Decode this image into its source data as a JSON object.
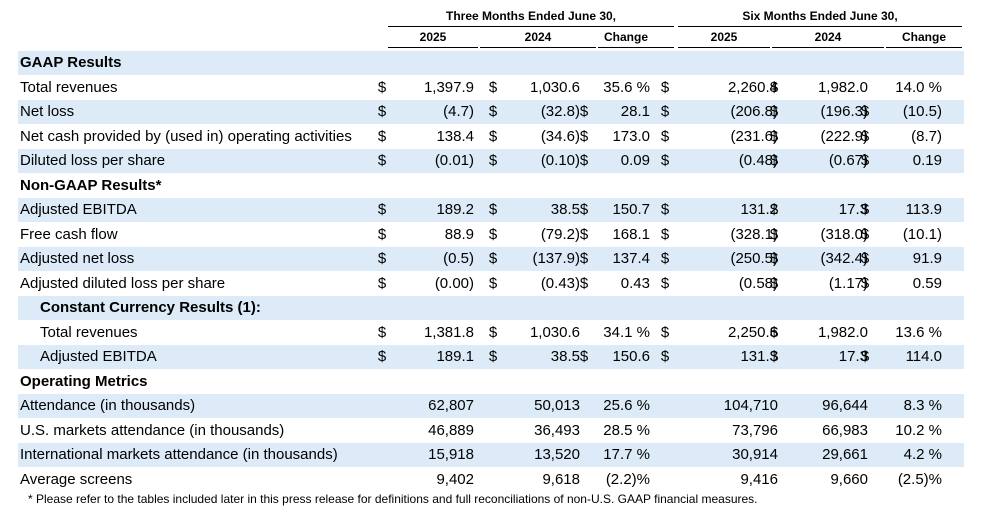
{
  "header": {
    "three_months": "Three Months Ended June 30,",
    "six_months": "Six Months Ended June 30,",
    "cols": [
      "2025",
      "2024",
      "Change",
      "2025",
      "2024",
      "Change"
    ]
  },
  "rows": [
    {
      "type": "section",
      "label": "GAAP Results"
    },
    {
      "type": "data",
      "label": "Total revenues",
      "c": [
        "$",
        "1,397.9",
        "$",
        "1,030.6",
        "",
        "35.6 %",
        "$",
        "2,260.4",
        "$",
        "1,982.0",
        "",
        "14.0 %"
      ]
    },
    {
      "type": "data",
      "label": "Net loss",
      "c": [
        "$",
        "(4.7)",
        "$",
        "(32.8)",
        "$",
        "28.1",
        "$",
        "(206.8)",
        "$",
        "(196.3)",
        "$",
        "(10.5)"
      ]
    },
    {
      "type": "data",
      "label": "Net cash provided by (used in) operating activities",
      "c": [
        "$",
        "138.4",
        "$",
        "(34.6)",
        "$",
        "173.0",
        "$",
        "(231.6)",
        "$",
        "(222.9)",
        "$",
        "(8.7)"
      ]
    },
    {
      "type": "data",
      "label": "Diluted loss per share",
      "c": [
        "$",
        "(0.01)",
        "$",
        "(0.10)",
        "$",
        "0.09",
        "$",
        "(0.48)",
        "$",
        "(0.67)",
        "$",
        "0.19"
      ]
    },
    {
      "type": "section",
      "label": "Non-GAAP Results*"
    },
    {
      "type": "data",
      "label": "Adjusted EBITDA",
      "c": [
        "$",
        "189.2",
        "$",
        "38.5",
        "$",
        "150.7",
        "$",
        "131.2",
        "$",
        "17.3",
        "$",
        "113.9"
      ]
    },
    {
      "type": "data",
      "label": "Free cash flow",
      "c": [
        "$",
        "88.9",
        "$",
        "(79.2)",
        "$",
        "168.1",
        "$",
        "(328.1)",
        "$",
        "(318.0)",
        "$",
        "(10.1)"
      ]
    },
    {
      "type": "data",
      "label": "Adjusted net loss",
      "c": [
        "$",
        "(0.5)",
        "$",
        "(137.9)",
        "$",
        "137.4",
        "$",
        "(250.5)",
        "$",
        "(342.4)",
        "$",
        "91.9"
      ]
    },
    {
      "type": "data",
      "label": "Adjusted diluted loss per share",
      "c": [
        "$",
        "(0.00)",
        "$",
        "(0.43)",
        "$",
        "0.43",
        "$",
        "(0.58)",
        "$",
        "(1.17)",
        "$",
        "0.59"
      ]
    },
    {
      "type": "section",
      "indent": true,
      "label": "Constant Currency Results (1):"
    },
    {
      "type": "data",
      "indent": true,
      "label": "Total revenues",
      "c": [
        "$",
        "1,381.8",
        "$",
        "1,030.6",
        "",
        "34.1 %",
        "$",
        "2,250.6",
        "$",
        "1,982.0",
        "",
        "13.6 %"
      ]
    },
    {
      "type": "data",
      "indent": true,
      "label": "Adjusted EBITDA",
      "c": [
        "$",
        "189.1",
        "$",
        "38.5",
        "$",
        "150.6",
        "$",
        "131.3",
        "$",
        "17.3",
        "$",
        "114.0"
      ]
    },
    {
      "type": "section",
      "label": "Operating Metrics"
    },
    {
      "type": "data",
      "label": "Attendance (in thousands)",
      "c": [
        "",
        "62,807",
        "",
        "50,013",
        "",
        "25.6 %",
        "",
        "104,710",
        "",
        "96,644",
        "",
        "8.3 %"
      ]
    },
    {
      "type": "data",
      "label": "U.S. markets attendance (in thousands)",
      "c": [
        "",
        "46,889",
        "",
        "36,493",
        "",
        "28.5 %",
        "",
        "73,796",
        "",
        "66,983",
        "",
        "10.2 %"
      ]
    },
    {
      "type": "data",
      "label": "International markets attendance (in thousands)",
      "c": [
        "",
        "15,918",
        "",
        "13,520",
        "",
        "17.7 %",
        "",
        "30,914",
        "",
        "29,661",
        "",
        "4.2 %"
      ]
    },
    {
      "type": "data",
      "label": "Average screens",
      "c": [
        "",
        "9,402",
        "",
        "9,618",
        "",
        "(2.2)%",
        "",
        "9,416",
        "",
        "9,660",
        "",
        "(2.5)%"
      ]
    }
  ],
  "footnote": "* Please refer to the tables included later in this press release for definitions and full reconciliations of non-U.S. GAAP financial measures."
}
